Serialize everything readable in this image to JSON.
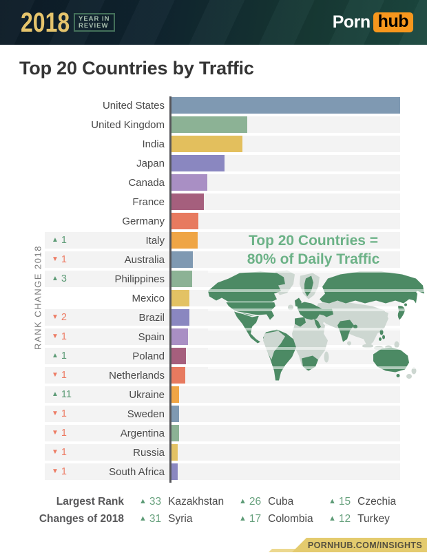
{
  "header": {
    "year": "2018",
    "year_in_review_line1": "YEAR IN",
    "year_in_review_line2": "REVIEW",
    "brand_porn": "Porn",
    "brand_hub": "hub"
  },
  "title": "Top 20 Countries by Traffic",
  "rank_axis_label": "RANK CHANGE 2018",
  "map_caption_line1": "Top 20 Countries =",
  "map_caption_line2": "80% of Daily Traffic",
  "chart_data": {
    "type": "bar",
    "orientation": "horizontal",
    "title": "Top 20 Countries by Traffic",
    "ylabel": "RANK CHANGE 2018",
    "xlabel": "",
    "xlim": [
      0,
      100
    ],
    "unit": "relative daily traffic, % of top country (estimated from bar lengths; no numeric axis shown)",
    "categories": [
      "United States",
      "United Kingdom",
      "India",
      "Japan",
      "Canada",
      "France",
      "Germany",
      "Italy",
      "Australia",
      "Philippines",
      "Mexico",
      "Brazil",
      "Spain",
      "Poland",
      "Netherlands",
      "Ukraine",
      "Sweden",
      "Argentina",
      "Russia",
      "South Africa"
    ],
    "values": [
      100,
      33.3,
      31.2,
      23.4,
      16.0,
      14.4,
      12.0,
      11.7,
      9.5,
      9.4,
      8.2,
      8.1,
      7.5,
      6.5,
      6.4,
      3.7,
      3.6,
      3.6,
      3.0,
      2.9
    ],
    "rank_changes": [
      null,
      null,
      null,
      null,
      null,
      null,
      null,
      1,
      -1,
      3,
      null,
      -2,
      -1,
      1,
      -1,
      11,
      -1,
      -1,
      -1,
      -1
    ],
    "bar_colors": [
      "#7f99b2",
      "#8cb295",
      "#e3bf5d",
      "#8a87c0",
      "#a98fc4",
      "#a55f7d",
      "#e77a5f",
      "#efa545",
      "#7f99b2",
      "#8cb295",
      "#e3c264",
      "#8a87c0",
      "#a98fc4",
      "#a55f7d",
      "#e77a5f",
      "#efa545",
      "#7f99b2",
      "#8cb295",
      "#e3c264",
      "#8a87c0"
    ],
    "grid": false,
    "legend_position": "none"
  },
  "legend": {
    "label_line1": "Largest Rank",
    "label_line2": "Changes of 2018",
    "rows": [
      [
        {
          "direction": "up",
          "change": "33",
          "country": "Kazakhstan"
        },
        {
          "direction": "up",
          "change": "26",
          "country": "Cuba"
        },
        {
          "direction": "up",
          "change": "15",
          "country": "Czechia"
        }
      ],
      [
        {
          "direction": "up",
          "change": "31",
          "country": "Syria"
        },
        {
          "direction": "up",
          "change": "17",
          "country": "Colombia"
        },
        {
          "direction": "up",
          "change": "12",
          "country": "Turkey"
        }
      ]
    ]
  },
  "footer": {
    "text": "PORNHUB.COM/INSIGHTS"
  },
  "colors": {
    "header_gradient_start": "#0d1c27",
    "header_gradient_end": "#1d4a41",
    "year_gold": "#e5c46c",
    "brand_orange": "#f7971d",
    "title_text": "#353535",
    "row_stripe": "#f3f3f3",
    "axis_line": "#56565a",
    "rank_up_green": "#5d9b76",
    "rank_down_red": "#ed7b63",
    "map_caption_green": "#6cb287",
    "map_highlight_green": "#4c8a64",
    "map_base_gray": "#cdd7d1",
    "banner_yellow": "#e4cb6e"
  }
}
